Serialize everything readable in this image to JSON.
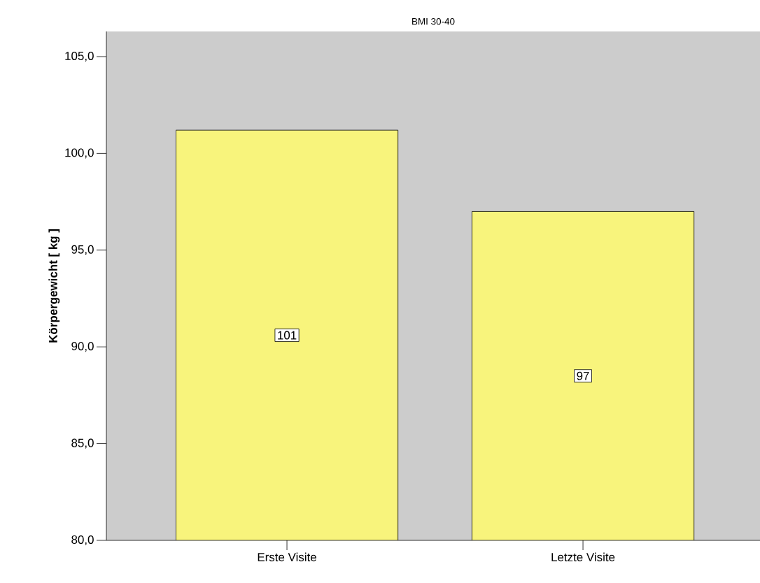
{
  "chart_data": {
    "type": "bar",
    "title": "BMI 30-40",
    "ylabel": "Körpergewicht [ kg ]",
    "categories": [
      "Erste Visite",
      "Letzte Visite"
    ],
    "values": [
      101.2,
      97.0
    ],
    "value_labels": [
      "101",
      "97"
    ],
    "color": "#f8f47c",
    "ylim": [
      80,
      106.3
    ],
    "yticks": [
      {
        "value": 80,
        "label": "80,0"
      },
      {
        "value": 85,
        "label": "85,0"
      },
      {
        "value": 90,
        "label": "90,0"
      },
      {
        "value": 95,
        "label": "95,0"
      },
      {
        "value": 100,
        "label": "100,0"
      },
      {
        "value": 105,
        "label": "105,0"
      }
    ]
  }
}
